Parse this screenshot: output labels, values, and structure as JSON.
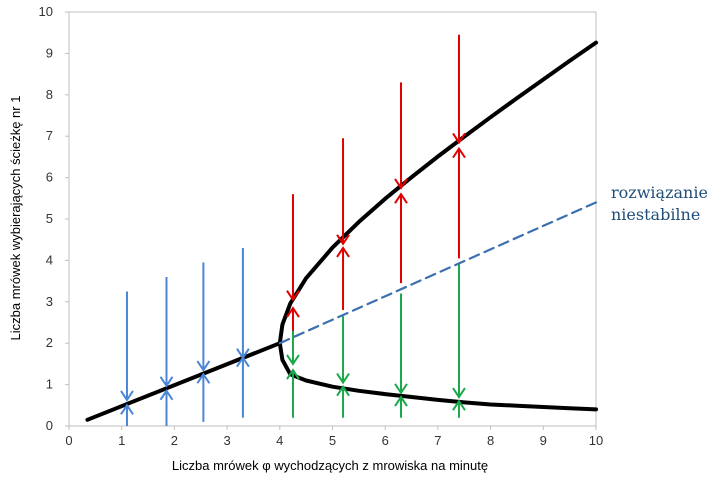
{
  "chart_data": {
    "type": "line",
    "xlabel": "Liczba mrówek φ wychodzących z mrowiska na minutę",
    "ylabel": "Liczba mrówek wybierających ścieżkę nr 1",
    "xlim": [
      0,
      10
    ],
    "ylim": [
      0,
      10
    ],
    "x_ticks": [
      "0",
      "1",
      "2",
      "3",
      "4",
      "5",
      "6",
      "7",
      "8",
      "9",
      "10"
    ],
    "y_ticks": [
      "0",
      "1",
      "2",
      "3",
      "4",
      "5",
      "6",
      "7",
      "8",
      "9",
      "10"
    ],
    "grid": false,
    "annotation": [
      "rozwiązanie",
      "niestabilne"
    ],
    "series": [
      {
        "style": "solid",
        "color": "#000000",
        "x": [
          0.35,
          4.0
        ],
        "y": [
          0.15,
          2.0
        ]
      },
      {
        "style": "solid",
        "color": "#000000",
        "x": [
          4.0,
          4.05,
          4.2,
          4.5,
          5.0,
          5.5,
          6.0,
          6.5,
          7.0,
          7.5,
          8.0,
          8.5,
          9.0,
          9.5,
          10.0
        ],
        "y": [
          2.0,
          2.45,
          2.96,
          3.57,
          4.31,
          4.93,
          5.49,
          6.01,
          6.51,
          6.99,
          7.46,
          7.92,
          8.37,
          8.82,
          9.26
        ]
      },
      {
        "style": "solid",
        "color": "#000000",
        "x": [
          4.0,
          4.05,
          4.2,
          4.5,
          5.0,
          5.5,
          6.0,
          6.5,
          7.0,
          7.5,
          8.0,
          8.5,
          9.0,
          9.5,
          10.0
        ],
        "y": [
          2.0,
          1.6,
          1.25,
          1.1,
          0.95,
          0.85,
          0.77,
          0.7,
          0.63,
          0.57,
          0.52,
          0.49,
          0.46,
          0.43,
          0.4
        ]
      },
      {
        "style": "dashed",
        "color": "#3c6fb0",
        "x": [
          4.0,
          10.0
        ],
        "y": [
          2.0,
          5.4
        ]
      }
    ],
    "arrows": [
      {
        "color": "#4a86d6",
        "x": 1.1,
        "y_from": 3.25,
        "y_to": 0.63
      },
      {
        "color": "#4a86d6",
        "x": 1.1,
        "y_from": 0.0,
        "y_to": 0.5
      },
      {
        "color": "#4a86d6",
        "x": 1.85,
        "y_from": 3.6,
        "y_to": 0.97
      },
      {
        "color": "#4a86d6",
        "x": 1.85,
        "y_from": 0.0,
        "y_to": 0.85
      },
      {
        "color": "#4a86d6",
        "x": 2.55,
        "y_from": 3.95,
        "y_to": 1.35
      },
      {
        "color": "#4a86d6",
        "x": 2.55,
        "y_from": 0.1,
        "y_to": 1.25
      },
      {
        "color": "#4a86d6",
        "x": 3.3,
        "y_from": 4.3,
        "y_to": 1.65
      },
      {
        "color": "#4a86d6",
        "x": 3.3,
        "y_from": 0.2,
        "y_to": 1.65
      },
      {
        "color": "#e00000",
        "x": 4.25,
        "y_from": 5.6,
        "y_to": 3.05
      },
      {
        "color": "#e00000",
        "x": 4.25,
        "y_from": 2.15,
        "y_to": 2.85
      },
      {
        "color": "#e00000",
        "x": 5.2,
        "y_from": 6.95,
        "y_to": 4.4
      },
      {
        "color": "#e00000",
        "x": 5.2,
        "y_from": 2.8,
        "y_to": 4.3
      },
      {
        "color": "#e00000",
        "x": 6.3,
        "y_from": 8.3,
        "y_to": 5.75
      },
      {
        "color": "#e00000",
        "x": 6.3,
        "y_from": 3.45,
        "y_to": 5.6
      },
      {
        "color": "#e00000",
        "x": 7.4,
        "y_from": 9.45,
        "y_to": 6.85
      },
      {
        "color": "#e00000",
        "x": 7.4,
        "y_from": 4.05,
        "y_to": 6.7
      },
      {
        "color": "#1aa84a",
        "x": 4.25,
        "y_from": 2.3,
        "y_to": 1.5
      },
      {
        "color": "#1aa84a",
        "x": 4.25,
        "y_from": 0.2,
        "y_to": 1.35
      },
      {
        "color": "#1aa84a",
        "x": 5.2,
        "y_from": 2.65,
        "y_to": 1.05
      },
      {
        "color": "#1aa84a",
        "x": 5.2,
        "y_from": 0.2,
        "y_to": 0.95
      },
      {
        "color": "#1aa84a",
        "x": 6.3,
        "y_from": 3.2,
        "y_to": 0.8
      },
      {
        "color": "#1aa84a",
        "x": 6.3,
        "y_from": 0.2,
        "y_to": 0.7
      },
      {
        "color": "#1aa84a",
        "x": 7.4,
        "y_from": 3.9,
        "y_to": 0.7
      },
      {
        "color": "#1aa84a",
        "x": 7.4,
        "y_from": 0.2,
        "y_to": 0.6
      }
    ]
  }
}
